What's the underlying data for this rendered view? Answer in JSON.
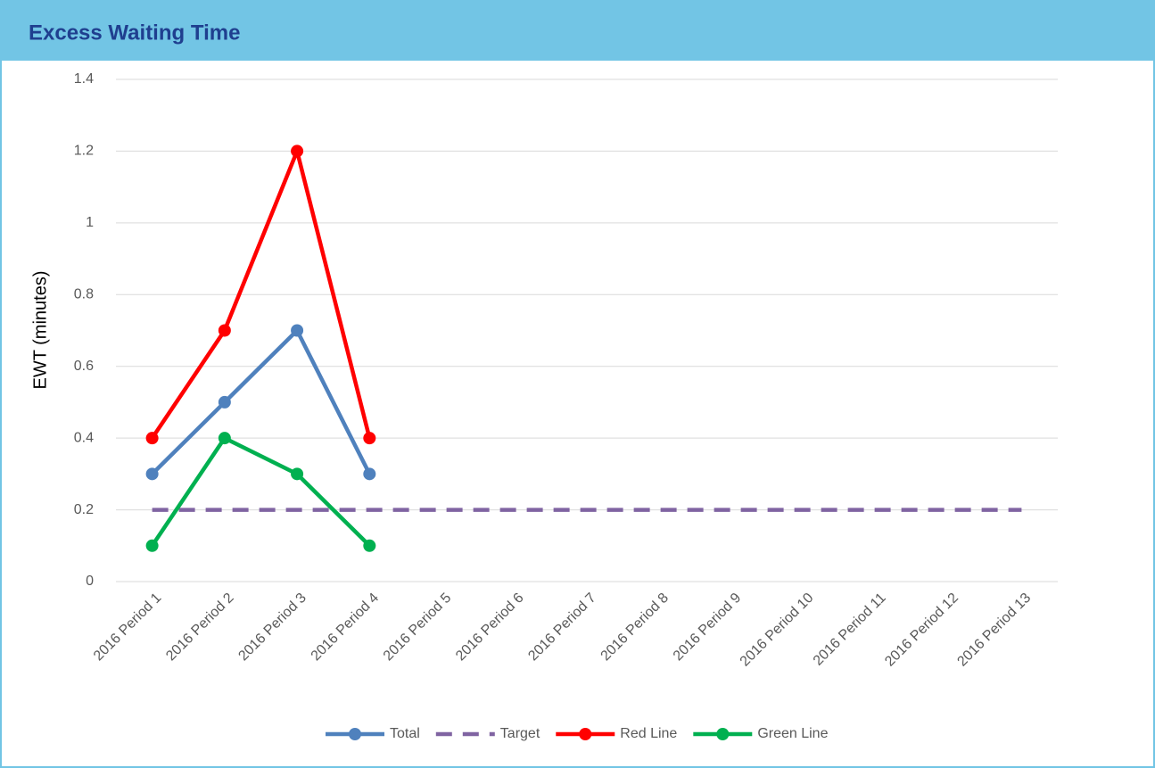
{
  "chart_data": {
    "type": "line",
    "title": "Excess Waiting Time",
    "y_label": "EWT (minutes)",
    "categories": [
      "2016 Period 1",
      "2016 Period 2",
      "2016 Period 3",
      "2016 Period 4",
      "2016 Period 5",
      "2016 Period 6",
      "2016 Period 7",
      "2016 Period 8",
      "2016 Period 9",
      "2016 Period 10",
      "2016 Period 11",
      "2016 Period 12",
      "2016 Period 13"
    ],
    "series": [
      {
        "name": "Total",
        "color": "#4f81bd",
        "marker": true,
        "dashed": false,
        "values": [
          0.3,
          0.5,
          0.7,
          0.3,
          null,
          null,
          null,
          null,
          null,
          null,
          null,
          null,
          null
        ]
      },
      {
        "name": "Target",
        "color": "#8064a2",
        "marker": false,
        "dashed": true,
        "values": [
          0.2,
          0.2,
          0.2,
          0.2,
          0.2,
          0.2,
          0.2,
          0.2,
          0.2,
          0.2,
          0.2,
          0.2,
          0.2
        ]
      },
      {
        "name": "Red Line",
        "color": "#ff0000",
        "marker": true,
        "dashed": false,
        "values": [
          0.4,
          0.7,
          1.2,
          0.4,
          null,
          null,
          null,
          null,
          null,
          null,
          null,
          null,
          null
        ]
      },
      {
        "name": "Green Line",
        "color": "#00b050",
        "marker": true,
        "dashed": false,
        "values": [
          0.1,
          0.4,
          0.3,
          0.1,
          null,
          null,
          null,
          null,
          null,
          null,
          null,
          null,
          null
        ]
      }
    ],
    "ylim": [
      0,
      1.4
    ],
    "yticks": [
      0,
      0.2,
      0.4,
      0.6,
      0.8,
      1,
      1.2,
      1.4
    ],
    "grid": true,
    "legend": "bottom"
  }
}
